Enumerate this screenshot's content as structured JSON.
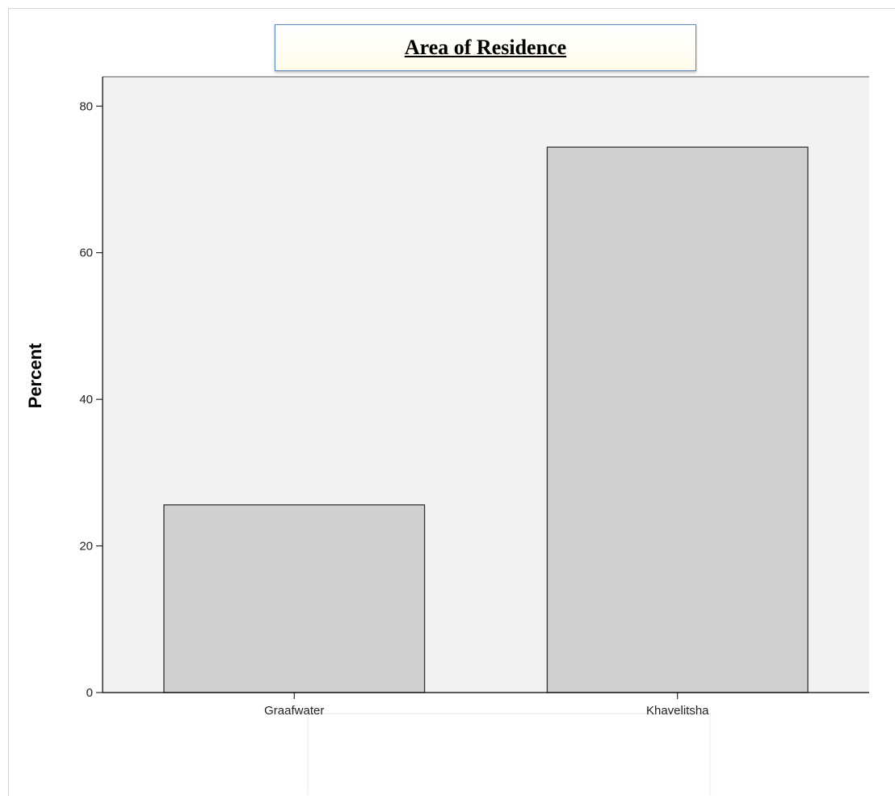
{
  "chart_data": {
    "type": "bar",
    "title": "Area of Residence",
    "xlabel": "",
    "ylabel": "Percent",
    "categories": [
      "Graafwater",
      "Khayelitsha"
    ],
    "values": [
      25.6,
      74.4
    ],
    "ylim": [
      0,
      84
    ],
    "yticks": [
      0,
      20,
      40,
      60,
      80
    ],
    "grid": false,
    "legend": "none",
    "colors": {
      "bar_fill": "#d0d0d0",
      "bar_stroke": "#333333",
      "plot_bg": "#f2f2f2",
      "axis": "#000000",
      "title_border": "#5b87c4"
    }
  }
}
